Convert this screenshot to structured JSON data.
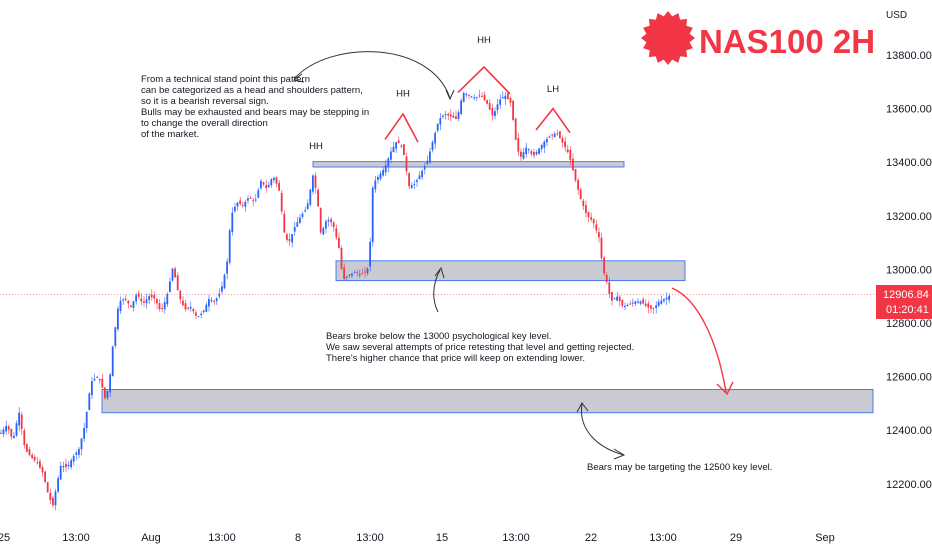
{
  "chart_data": {
    "type": "candlestick",
    "title": "NAS100 2H",
    "currency": "USD",
    "ylim": [
      12080,
      14120
    ],
    "y_ticks": [
      13800,
      13600,
      13400,
      13200,
      13000,
      12800,
      12600,
      12400,
      12200
    ],
    "y_tick_labels": [
      "13800.00",
      "13600.00",
      "13400.00",
      "13200.00",
      "13000.00",
      "12800.00",
      "12600.00",
      "12400.00",
      "12200.00"
    ],
    "x_labels": [
      "25",
      "13:00",
      "Aug",
      "13:00",
      "8",
      "13:00",
      "15",
      "13:00",
      "22",
      "13:00",
      "29",
      "Sep"
    ],
    "last_price": "12906.84",
    "countdown": "01:20:41",
    "colors": {
      "up": "#2962ff",
      "down": "#f23645",
      "title": "#f23645",
      "zone_fill": "#c9cbd1",
      "zone_border": "#2962ff",
      "arrow": "#f23645"
    },
    "path": [
      [
        0,
        12390
      ],
      [
        6,
        12420
      ],
      [
        12,
        12360
      ],
      [
        18,
        12470
      ],
      [
        24,
        12330
      ],
      [
        30,
        12300
      ],
      [
        36,
        12280
      ],
      [
        42,
        12240
      ],
      [
        48,
        12150
      ],
      [
        52,
        12120
      ],
      [
        56,
        12200
      ],
      [
        60,
        12270
      ],
      [
        66,
        12260
      ],
      [
        72,
        12300
      ],
      [
        78,
        12330
      ],
      [
        84,
        12420
      ],
      [
        90,
        12580
      ],
      [
        96,
        12600
      ],
      [
        100,
        12580
      ],
      [
        104,
        12520
      ],
      [
        108,
        12560
      ],
      [
        112,
        12720
      ],
      [
        118,
        12880
      ],
      [
        124,
        12890
      ],
      [
        130,
        12860
      ],
      [
        136,
        12910
      ],
      [
        142,
        12870
      ],
      [
        148,
        12900
      ],
      [
        154,
        12890
      ],
      [
        160,
        12840
      ],
      [
        166,
        12900
      ],
      [
        172,
        13010
      ],
      [
        178,
        12900
      ],
      [
        184,
        12850
      ],
      [
        190,
        12860
      ],
      [
        196,
        12820
      ],
      [
        202,
        12840
      ],
      [
        208,
        12890
      ],
      [
        214,
        12880
      ],
      [
        220,
        12920
      ],
      [
        226,
        13020
      ],
      [
        230,
        13200
      ],
      [
        236,
        13250
      ],
      [
        242,
        13240
      ],
      [
        248,
        13270
      ],
      [
        254,
        13250
      ],
      [
        260,
        13330
      ],
      [
        266,
        13300
      ],
      [
        272,
        13350
      ],
      [
        278,
        13300
      ],
      [
        284,
        13120
      ],
      [
        288,
        13100
      ],
      [
        294,
        13160
      ],
      [
        300,
        13200
      ],
      [
        306,
        13230
      ],
      [
        312,
        13350
      ],
      [
        316,
        13280
      ],
      [
        320,
        13130
      ],
      [
        326,
        13190
      ],
      [
        332,
        13170
      ],
      [
        338,
        13080
      ],
      [
        342,
        12960
      ],
      [
        348,
        12980
      ],
      [
        354,
        12990
      ],
      [
        360,
        12980
      ],
      [
        364,
        12990
      ],
      [
        368,
        13010
      ],
      [
        372,
        13320
      ],
      [
        378,
        13350
      ],
      [
        384,
        13380
      ],
      [
        390,
        13440
      ],
      [
        396,
        13480
      ],
      [
        402,
        13450
      ],
      [
        408,
        13310
      ],
      [
        414,
        13320
      ],
      [
        420,
        13360
      ],
      [
        426,
        13400
      ],
      [
        432,
        13480
      ],
      [
        438,
        13560
      ],
      [
        444,
        13580
      ],
      [
        450,
        13570
      ],
      [
        456,
        13560
      ],
      [
        462,
        13660
      ],
      [
        468,
        13650
      ],
      [
        474,
        13640
      ],
      [
        480,
        13650
      ],
      [
        486,
        13620
      ],
      [
        492,
        13570
      ],
      [
        498,
        13630
      ],
      [
        504,
        13650
      ],
      [
        510,
        13620
      ],
      [
        516,
        13450
      ],
      [
        520,
        13420
      ],
      [
        526,
        13460
      ],
      [
        532,
        13420
      ],
      [
        538,
        13450
      ],
      [
        544,
        13480
      ],
      [
        550,
        13500
      ],
      [
        556,
        13510
      ],
      [
        562,
        13470
      ],
      [
        568,
        13430
      ],
      [
        574,
        13340
      ],
      [
        580,
        13260
      ],
      [
        586,
        13200
      ],
      [
        592,
        13180
      ],
      [
        598,
        13120
      ],
      [
        602,
        13000
      ],
      [
        606,
        12950
      ],
      [
        610,
        12880
      ],
      [
        616,
        12900
      ],
      [
        622,
        12860
      ],
      [
        628,
        12870
      ],
      [
        634,
        12880
      ],
      [
        640,
        12880
      ],
      [
        646,
        12860
      ],
      [
        652,
        12850
      ],
      [
        658,
        12880
      ],
      [
        664,
        12890
      ],
      [
        670,
        12906.84
      ]
    ],
    "zones": [
      {
        "name": "resistance-band",
        "price_low": 13382,
        "price_high": 13402,
        "x_start": 313,
        "x_end": 624
      },
      {
        "name": "psychological-level-zone",
        "price_low": 12958,
        "price_high": 13032,
        "x_start": 336,
        "x_end": 685
      },
      {
        "name": "target-zone",
        "price_low": 12465,
        "price_high": 12552,
        "x_start": 102,
        "x_end": 873
      }
    ],
    "pattern_labels": [
      {
        "text": "HH",
        "price": 13450,
        "x": 316
      },
      {
        "text": "HH",
        "price": 13645,
        "x": 403
      },
      {
        "text": "HH",
        "price": 13845,
        "x": 484
      },
      {
        "text": "LH",
        "price": 13662,
        "x": 553
      }
    ],
    "annotations": {
      "top_note": [
        "From a technical stand point this pattern",
        "can be categorized as a head and shoulders pattern,",
        "so it is a bearish reversal sign.",
        "Bulls may be exhausted and bears may be stepping in",
        "to change the overall direction",
        "of the market."
      ],
      "middle_note": [
        "Bears broke below the 13000 psychological key level.",
        "We saw several attempts of price retesting that level and getting rejected.",
        "There's higher chance that price will keep on extending lower."
      ],
      "bottom_note": [
        "Bears may be targeting the 12500 key level."
      ]
    }
  }
}
